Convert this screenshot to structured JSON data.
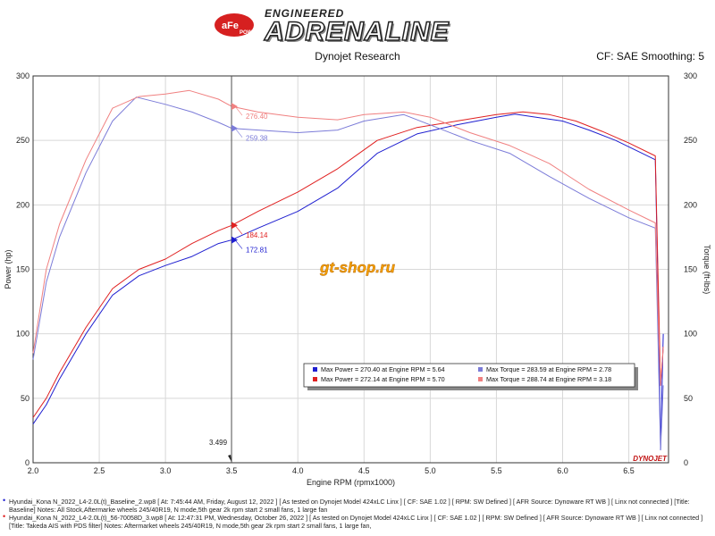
{
  "header": {
    "brand_badge": "aFe POWER",
    "brand_top": "ENGINEERED",
    "brand_main": "ADRENALINE",
    "subtitle": "Dynojet Research",
    "cf_info": "CF: SAE Smoothing: 5"
  },
  "watermark": "gt-shop.ru",
  "dynojet_logo": "DYNOJET",
  "colors": {
    "power_baseline": "#1f1fd0",
    "power_mod": "#e02020",
    "torque_baseline": "#7b7bd8",
    "torque_mod": "#f08080"
  },
  "chart_data": {
    "type": "line",
    "xlabel": "Engine RPM (rpmx1000)",
    "ylabel_left": "Power (hp)",
    "ylabel_right": "Torque (ft-lbs)",
    "xlim": [
      2.0,
      6.8
    ],
    "ylim": [
      0,
      300
    ],
    "x_ticks": [
      "2.0",
      "2.5",
      "3.0",
      "3.5",
      "4.0",
      "4.5",
      "5.0",
      "5.5",
      "6.0",
      "6.5"
    ],
    "y_ticks": [
      "0",
      "50",
      "100",
      "150",
      "200",
      "250",
      "300"
    ],
    "grid": true,
    "cursor": {
      "x": 3.499,
      "label": "3.499"
    },
    "cursor_values": [
      {
        "series": "torque_mod",
        "value": 276.4,
        "label": "276.40"
      },
      {
        "series": "torque_baseline",
        "value": 259.38,
        "label": "259.38"
      },
      {
        "series": "power_mod",
        "value": 184.14,
        "label": "184.14"
      },
      {
        "series": "power_baseline",
        "value": 172.81,
        "label": "172.81"
      }
    ],
    "legend": [
      {
        "key": "power_baseline",
        "text": "Max Power = 270.40 at Engine RPM = 5.64"
      },
      {
        "key": "torque_baseline",
        "text": "Max Torque = 283.59 at Engine RPM = 2.78"
      },
      {
        "key": "power_mod",
        "text": "Max Power = 272.14 at Engine RPM = 5.70"
      },
      {
        "key": "torque_mod",
        "text": "Max Torque = 288.74 at Engine RPM = 3.18"
      }
    ],
    "series": [
      {
        "key": "power_baseline",
        "x": [
          2.0,
          2.1,
          2.2,
          2.4,
          2.6,
          2.8,
          3.0,
          3.2,
          3.4,
          3.5,
          3.7,
          4.0,
          4.3,
          4.6,
          4.9,
          5.2,
          5.5,
          5.64,
          5.8,
          6.0,
          6.2,
          6.4,
          6.6,
          6.7,
          6.72,
          6.74,
          6.76
        ],
        "y": [
          30,
          45,
          65,
          100,
          130,
          145,
          153,
          160,
          170,
          172.8,
          182,
          195,
          213,
          240,
          255,
          262,
          268,
          270.4,
          268,
          265,
          258,
          250,
          240,
          235,
          140,
          10,
          100
        ]
      },
      {
        "key": "power_mod",
        "x": [
          2.0,
          2.1,
          2.2,
          2.4,
          2.6,
          2.8,
          3.0,
          3.2,
          3.4,
          3.5,
          3.7,
          4.0,
          4.3,
          4.6,
          4.9,
          5.2,
          5.5,
          5.7,
          5.9,
          6.1,
          6.3,
          6.5,
          6.7,
          6.72,
          6.74,
          6.76
        ],
        "y": [
          35,
          50,
          70,
          105,
          135,
          150,
          158,
          170,
          180,
          184.1,
          195,
          210,
          228,
          250,
          260,
          265,
          270,
          272.1,
          270,
          265,
          257,
          248,
          238,
          150,
          60,
          90
        ]
      },
      {
        "key": "torque_baseline",
        "x": [
          2.0,
          2.1,
          2.2,
          2.4,
          2.6,
          2.78,
          3.0,
          3.2,
          3.4,
          3.5,
          3.7,
          4.0,
          4.3,
          4.5,
          4.8,
          5.0,
          5.3,
          5.6,
          5.9,
          6.2,
          6.5,
          6.7,
          6.72,
          6.74,
          6.76
        ],
        "y": [
          80,
          140,
          175,
          225,
          265,
          283.6,
          278,
          272,
          264,
          259.4,
          258,
          256,
          258,
          265,
          270,
          262,
          250,
          240,
          222,
          205,
          190,
          182,
          100,
          10,
          60
        ]
      },
      {
        "key": "torque_mod",
        "x": [
          2.0,
          2.1,
          2.2,
          2.4,
          2.6,
          2.8,
          3.0,
          3.18,
          3.4,
          3.5,
          3.7,
          4.0,
          4.3,
          4.5,
          4.8,
          5.0,
          5.3,
          5.6,
          5.9,
          6.2,
          6.5,
          6.7,
          6.72,
          6.74,
          6.76
        ],
        "y": [
          85,
          150,
          185,
          235,
          275,
          284,
          286,
          288.7,
          282,
          276.4,
          272,
          268,
          266,
          270,
          272,
          268,
          256,
          246,
          232,
          212,
          196,
          186,
          120,
          60,
          90
        ]
      }
    ]
  },
  "footer": {
    "line1": "Hyundai_Kona N_2022_L4-2.0L(t)_Baseline_2.wp8 [ At: 7:45:44 AM, Friday, August 12, 2022 ] [ As tested on Dynojet Model 424xLC Linx ] [ CF: SAE 1.02 ] [ RPM: SW Defined ] [ AFR Source: Dynoware RT WB ] [ Linx not connected ] [Title: Baseline]  Notes: All Stock,Aftermarke wheels 245/40R19, N mode,5th gear 2k rpm start 2 small fans, 1 large fan",
    "line2": "Hyundai_Kona N_2022_L4-2.0L(t)_56-70058D_3.wp8 [ At: 12:47:31 PM, Wednesday, October 26, 2022 ] [ As tested on Dynojet Model 424xLC Linx ] [ CF: SAE 1.02 ] [ RPM: SW Defined ] [ AFR Source: Dynoware RT WB ] [ Linx not connected ] [Title: Takeda AIS with PDS filter]  Notes:  Aftermarket wheels 245/40R19, N mode,5th gear 2k rpm start 2 small fans, 1 large fan,"
  }
}
